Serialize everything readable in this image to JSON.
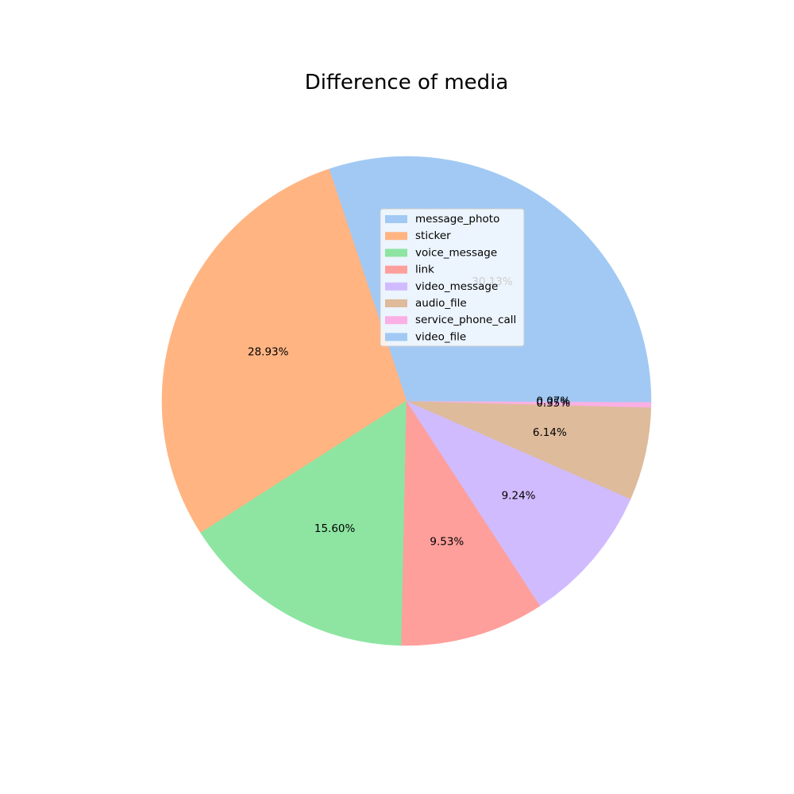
{
  "chart_data": {
    "type": "pie",
    "title": "Difference of media",
    "legend_position": "upper-center, overlapping pie",
    "start_angle_deg": 0,
    "direction": "counterclockwise",
    "slices": [
      {
        "name": "message_photo",
        "percent": 30.13,
        "label": "30.13%",
        "color": "#a1c9f4"
      },
      {
        "name": "sticker",
        "percent": 28.93,
        "label": "28.93%",
        "color": "#ffb482"
      },
      {
        "name": "voice_message",
        "percent": 15.6,
        "label": "15.60%",
        "color": "#8de5a1"
      },
      {
        "name": "link",
        "percent": 9.53,
        "label": "9.53%",
        "color": "#ff9f9b"
      },
      {
        "name": "video_message",
        "percent": 9.24,
        "label": "9.24%",
        "color": "#d0bbff"
      },
      {
        "name": "audio_file",
        "percent": 6.14,
        "label": "6.14%",
        "color": "#debb9b"
      },
      {
        "name": "service_phone_call",
        "percent": 0.35,
        "label": "0.35%",
        "color": "#fab0e4"
      },
      {
        "name": "video_file",
        "percent": 0.07,
        "label": "0.07%",
        "color": "#a1c9f4"
      }
    ]
  }
}
